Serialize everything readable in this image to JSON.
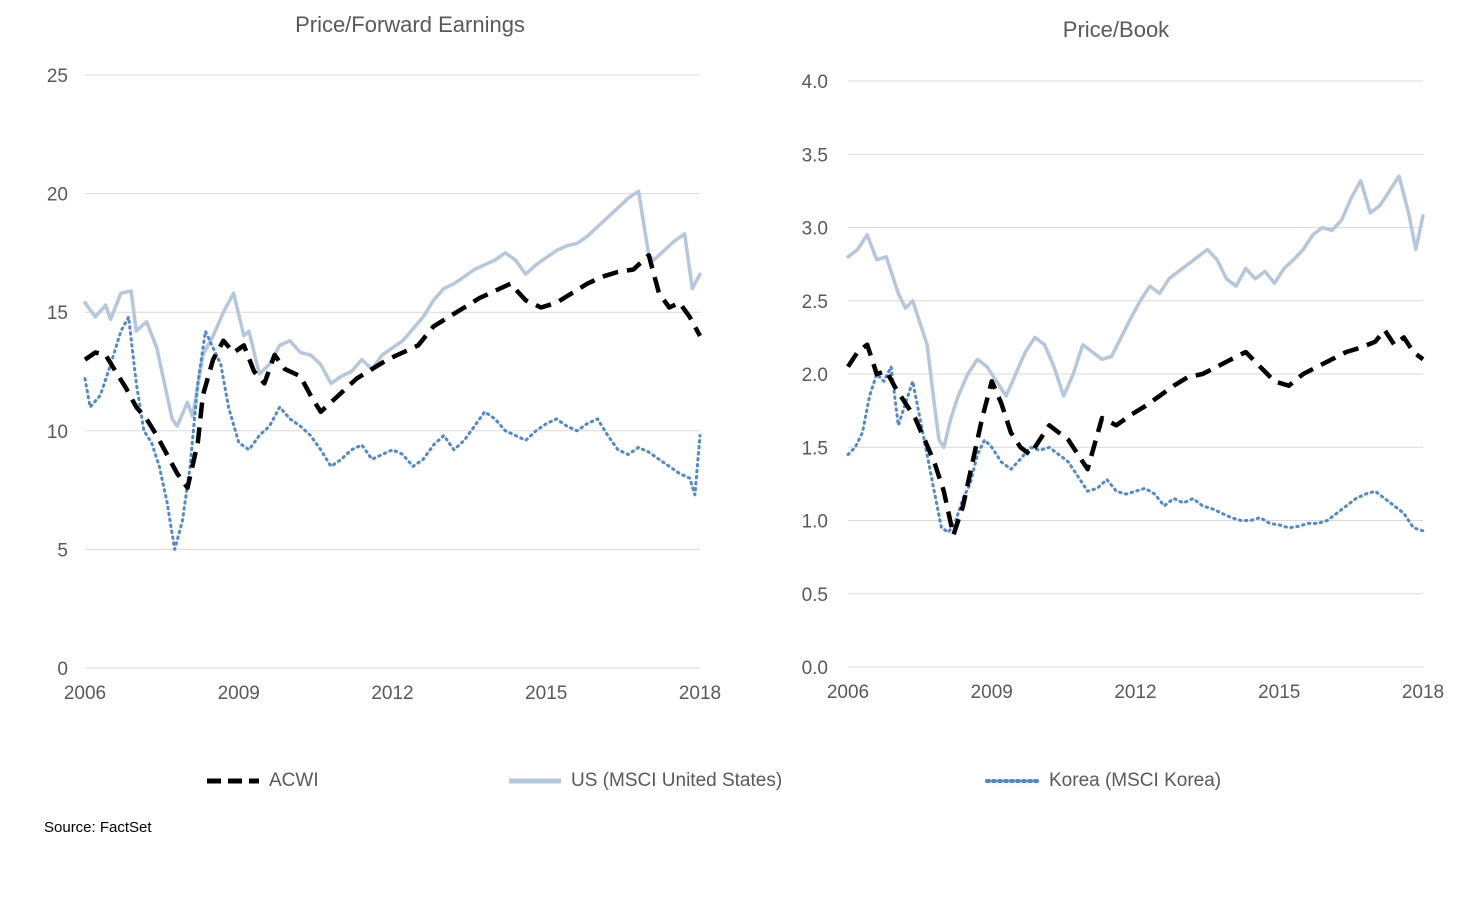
{
  "source": "Source: FactSet",
  "colors": {
    "acwi": "#000000",
    "us": "#b4c7dc",
    "korea": "#4f89cf",
    "grid": "#d9d9d9",
    "text": "#595959"
  },
  "legend": [
    {
      "key": "acwi",
      "label": "ACWI",
      "style": "dashed"
    },
    {
      "key": "us",
      "label": "US (MSCI United States)",
      "style": "solid"
    },
    {
      "key": "korea",
      "label": "Korea (MSCI Korea)",
      "style": "dotted"
    }
  ],
  "chart_data": [
    {
      "type": "line",
      "title": "Price/Forward Earnings",
      "xlabel": "",
      "ylabel": "",
      "xlim": [
        2006,
        2018
      ],
      "ylim": [
        0,
        25
      ],
      "yticks": [
        0,
        5,
        10,
        15,
        20,
        25
      ],
      "ytick_labels": [
        "0",
        "5",
        "10",
        "15",
        "20",
        "25"
      ],
      "xticks": [
        2006,
        2009,
        2012,
        2015,
        2018
      ],
      "xtick_labels": [
        "2006",
        "2009",
        "2012",
        "2015",
        "2018"
      ],
      "grid": true,
      "legend_position": "bottom",
      "series": [
        {
          "name": "ACWI",
          "key": "acwi",
          "x": [
            2006.0,
            2006.2,
            2006.4,
            2006.6,
            2006.8,
            2007.0,
            2007.2,
            2007.4,
            2007.6,
            2007.8,
            2008.0,
            2008.2,
            2008.3,
            2008.5,
            2008.7,
            2008.9,
            2009.1,
            2009.3,
            2009.5,
            2009.7,
            2009.9,
            2010.2,
            2010.4,
            2010.6,
            2010.8,
            2011.0,
            2011.3,
            2011.6,
            2011.9,
            2012.2,
            2012.5,
            2012.8,
            2013.1,
            2013.4,
            2013.7,
            2014.0,
            2014.3,
            2014.6,
            2014.9,
            2015.2,
            2015.5,
            2015.8,
            2016.1,
            2016.4,
            2016.7,
            2017.0,
            2017.2,
            2017.4,
            2017.6,
            2017.8,
            2018.0
          ],
          "values": [
            13.0,
            13.3,
            13.2,
            12.5,
            11.8,
            11.0,
            10.5,
            9.8,
            9.0,
            8.2,
            7.6,
            9.5,
            11.5,
            13.0,
            13.8,
            13.3,
            13.6,
            12.5,
            12.0,
            13.2,
            12.6,
            12.3,
            11.5,
            10.8,
            11.2,
            11.6,
            12.2,
            12.6,
            13.0,
            13.3,
            13.6,
            14.4,
            14.8,
            15.2,
            15.6,
            15.9,
            16.2,
            15.5,
            15.2,
            15.4,
            15.8,
            16.2,
            16.5,
            16.7,
            16.8,
            17.4,
            15.8,
            15.2,
            15.4,
            14.8,
            14.0
          ]
        },
        {
          "name": "US (MSCI United States)",
          "key": "us",
          "x": [
            2006.0,
            2006.2,
            2006.4,
            2006.5,
            2006.7,
            2006.9,
            2007.0,
            2007.2,
            2007.4,
            2007.5,
            2007.7,
            2007.8,
            2008.0,
            2008.1,
            2008.3,
            2008.5,
            2008.7,
            2008.9,
            2009.1,
            2009.2,
            2009.4,
            2009.6,
            2009.8,
            2010.0,
            2010.2,
            2010.4,
            2010.6,
            2010.8,
            2011.0,
            2011.2,
            2011.4,
            2011.6,
            2011.8,
            2012.0,
            2012.2,
            2012.4,
            2012.6,
            2012.8,
            2013.0,
            2013.2,
            2013.4,
            2013.6,
            2013.8,
            2014.0,
            2014.2,
            2014.4,
            2014.6,
            2014.8,
            2015.0,
            2015.2,
            2015.4,
            2015.6,
            2015.8,
            2016.0,
            2016.2,
            2016.4,
            2016.6,
            2016.8,
            2017.0,
            2017.1,
            2017.3,
            2017.5,
            2017.7,
            2017.85,
            2018.0
          ],
          "values": [
            15.4,
            14.8,
            15.3,
            14.7,
            15.8,
            15.9,
            14.2,
            14.6,
            13.5,
            12.5,
            10.5,
            10.2,
            11.2,
            10.6,
            13.2,
            14.0,
            15.0,
            15.8,
            14.0,
            14.2,
            12.4,
            12.8,
            13.6,
            13.8,
            13.3,
            13.2,
            12.8,
            12.0,
            12.3,
            12.5,
            13.0,
            12.6,
            13.2,
            13.5,
            13.8,
            14.3,
            14.8,
            15.5,
            16.0,
            16.2,
            16.5,
            16.8,
            17.0,
            17.2,
            17.5,
            17.2,
            16.6,
            17.0,
            17.3,
            17.6,
            17.8,
            17.9,
            18.2,
            18.6,
            19.0,
            19.4,
            19.8,
            20.1,
            17.4,
            17.2,
            17.6,
            18.0,
            18.3,
            16.0,
            16.6
          ]
        },
        {
          "name": "Korea (MSCI Korea)",
          "key": "korea",
          "x": [
            2006.0,
            2006.1,
            2006.3,
            2006.5,
            2006.7,
            2006.85,
            2007.0,
            2007.15,
            2007.3,
            2007.45,
            2007.6,
            2007.75,
            2007.9,
            2008.05,
            2008.2,
            2008.35,
            2008.5,
            2008.65,
            2008.8,
            2009.0,
            2009.2,
            2009.4,
            2009.6,
            2009.8,
            2010.0,
            2010.2,
            2010.4,
            2010.6,
            2010.8,
            2011.0,
            2011.2,
            2011.4,
            2011.6,
            2011.8,
            2012.0,
            2012.2,
            2012.4,
            2012.6,
            2012.8,
            2013.0,
            2013.2,
            2013.4,
            2013.6,
            2013.8,
            2014.0,
            2014.2,
            2014.4,
            2014.6,
            2014.8,
            2015.0,
            2015.2,
            2015.4,
            2015.6,
            2015.8,
            2016.0,
            2016.2,
            2016.4,
            2016.6,
            2016.8,
            2017.0,
            2017.2,
            2017.4,
            2017.6,
            2017.8,
            2017.9,
            2018.0
          ],
          "values": [
            12.2,
            11.0,
            11.5,
            12.8,
            14.2,
            14.8,
            12.0,
            10.0,
            9.5,
            8.5,
            7.0,
            5.0,
            6.2,
            8.5,
            12.0,
            14.2,
            13.5,
            12.8,
            11.0,
            9.5,
            9.2,
            9.8,
            10.2,
            11.0,
            10.5,
            10.2,
            9.8,
            9.2,
            8.5,
            8.8,
            9.2,
            9.4,
            8.8,
            9.0,
            9.2,
            9.0,
            8.5,
            8.8,
            9.4,
            9.8,
            9.2,
            9.6,
            10.2,
            10.8,
            10.5,
            10.0,
            9.8,
            9.6,
            10.0,
            10.3,
            10.5,
            10.2,
            10.0,
            10.3,
            10.5,
            9.8,
            9.2,
            9.0,
            9.3,
            9.1,
            8.8,
            8.5,
            8.2,
            8.0,
            7.3,
            9.8
          ]
        }
      ]
    },
    {
      "type": "line",
      "title": "Price/Book",
      "xlabel": "",
      "ylabel": "",
      "xlim": [
        2006,
        2018
      ],
      "ylim": [
        0,
        4
      ],
      "yticks": [
        0,
        0.5,
        1,
        1.5,
        2,
        2.5,
        3,
        3.5,
        4
      ],
      "ytick_labels": [
        "0.0",
        "0.5",
        "1.0",
        "1.5",
        "2.0",
        "2.5",
        "3.0",
        "3.5",
        "4.0"
      ],
      "xticks": [
        2006,
        2009,
        2012,
        2015,
        2018
      ],
      "xtick_labels": [
        "2006",
        "2009",
        "2012",
        "2015",
        "2018"
      ],
      "grid": true,
      "legend_position": "bottom",
      "series": [
        {
          "name": "ACWI",
          "key": "acwi",
          "x": [
            2006.0,
            2006.2,
            2006.4,
            2006.6,
            2006.8,
            2007.0,
            2007.2,
            2007.4,
            2007.6,
            2007.8,
            2008.0,
            2008.2,
            2008.4,
            2008.6,
            2008.8,
            2009.0,
            2009.2,
            2009.4,
            2009.6,
            2009.8,
            2010.0,
            2010.2,
            2010.4,
            2010.6,
            2010.8,
            2011.0,
            2011.3,
            2011.6,
            2011.9,
            2012.2,
            2012.5,
            2012.8,
            2013.1,
            2013.4,
            2013.7,
            2014.0,
            2014.3,
            2014.6,
            2014.9,
            2015.2,
            2015.5,
            2015.8,
            2016.1,
            2016.4,
            2016.7,
            2017.0,
            2017.2,
            2017.4,
            2017.6,
            2017.8,
            2018.0
          ],
          "values": [
            2.05,
            2.15,
            2.2,
            2.0,
            2.02,
            1.9,
            1.8,
            1.7,
            1.55,
            1.4,
            1.2,
            0.9,
            1.1,
            1.4,
            1.7,
            1.95,
            1.8,
            1.6,
            1.5,
            1.45,
            1.55,
            1.65,
            1.6,
            1.55,
            1.45,
            1.35,
            1.7,
            1.65,
            1.72,
            1.78,
            1.85,
            1.92,
            1.98,
            2.0,
            2.05,
            2.1,
            2.15,
            2.05,
            1.95,
            1.92,
            2.0,
            2.05,
            2.1,
            2.15,
            2.18,
            2.22,
            2.3,
            2.2,
            2.25,
            2.15,
            2.1
          ]
        },
        {
          "name": "US (MSCI United States)",
          "key": "us",
          "x": [
            2006.0,
            2006.2,
            2006.4,
            2006.6,
            2006.8,
            2006.9,
            2007.05,
            2007.2,
            2007.35,
            2007.5,
            2007.65,
            2007.8,
            2007.9,
            2008.0,
            2008.15,
            2008.3,
            2008.5,
            2008.7,
            2008.9,
            2009.1,
            2009.3,
            2009.5,
            2009.7,
            2009.9,
            2010.1,
            2010.3,
            2010.5,
            2010.7,
            2010.9,
            2011.1,
            2011.3,
            2011.5,
            2011.7,
            2011.9,
            2012.1,
            2012.3,
            2012.5,
            2012.7,
            2012.9,
            2013.1,
            2013.3,
            2013.5,
            2013.7,
            2013.9,
            2014.1,
            2014.3,
            2014.5,
            2014.7,
            2014.9,
            2015.1,
            2015.3,
            2015.5,
            2015.7,
            2015.9,
            2016.1,
            2016.3,
            2016.5,
            2016.7,
            2016.9,
            2017.1,
            2017.3,
            2017.5,
            2017.7,
            2017.85,
            2018.0
          ],
          "values": [
            2.8,
            2.85,
            2.95,
            2.78,
            2.8,
            2.7,
            2.55,
            2.45,
            2.5,
            2.35,
            2.2,
            1.8,
            1.55,
            1.5,
            1.7,
            1.85,
            2.0,
            2.1,
            2.05,
            1.95,
            1.85,
            2.0,
            2.15,
            2.25,
            2.2,
            2.05,
            1.85,
            2.0,
            2.2,
            2.15,
            2.1,
            2.12,
            2.25,
            2.38,
            2.5,
            2.6,
            2.55,
            2.65,
            2.7,
            2.75,
            2.8,
            2.85,
            2.78,
            2.65,
            2.6,
            2.72,
            2.65,
            2.7,
            2.62,
            2.72,
            2.78,
            2.85,
            2.95,
            3.0,
            2.98,
            3.05,
            3.2,
            3.32,
            3.1,
            3.15,
            3.25,
            3.35,
            3.1,
            2.85,
            3.08
          ]
        },
        {
          "name": "Korea (MSCI Korea)",
          "key": "korea",
          "x": [
            2006.0,
            2006.15,
            2006.3,
            2006.45,
            2006.6,
            2006.75,
            2006.9,
            2007.05,
            2007.2,
            2007.35,
            2007.5,
            2007.65,
            2007.8,
            2007.95,
            2008.1,
            2008.25,
            2008.4,
            2008.55,
            2008.7,
            2008.85,
            2009.0,
            2009.2,
            2009.4,
            2009.6,
            2009.8,
            2010.0,
            2010.2,
            2010.4,
            2010.6,
            2010.8,
            2011.0,
            2011.2,
            2011.4,
            2011.6,
            2011.8,
            2012.0,
            2012.2,
            2012.4,
            2012.6,
            2012.8,
            2013.0,
            2013.2,
            2013.4,
            2013.6,
            2013.8,
            2014.0,
            2014.2,
            2014.4,
            2014.6,
            2014.8,
            2015.0,
            2015.2,
            2015.4,
            2015.6,
            2015.8,
            2016.0,
            2016.2,
            2016.4,
            2016.6,
            2016.8,
            2017.0,
            2017.2,
            2017.4,
            2017.6,
            2017.8,
            2018.0
          ],
          "values": [
            1.45,
            1.5,
            1.6,
            1.85,
            2.0,
            1.95,
            2.05,
            1.65,
            1.8,
            1.95,
            1.7,
            1.45,
            1.2,
            0.95,
            0.92,
            1.0,
            1.15,
            1.25,
            1.45,
            1.55,
            1.5,
            1.4,
            1.35,
            1.42,
            1.5,
            1.48,
            1.5,
            1.45,
            1.4,
            1.3,
            1.2,
            1.22,
            1.28,
            1.2,
            1.18,
            1.2,
            1.22,
            1.18,
            1.1,
            1.15,
            1.12,
            1.15,
            1.1,
            1.08,
            1.05,
            1.02,
            1.0,
            1.0,
            1.02,
            0.98,
            0.97,
            0.95,
            0.96,
            0.98,
            0.98,
            1.0,
            1.05,
            1.1,
            1.15,
            1.18,
            1.2,
            1.15,
            1.1,
            1.05,
            0.95,
            0.93
          ]
        }
      ]
    }
  ]
}
